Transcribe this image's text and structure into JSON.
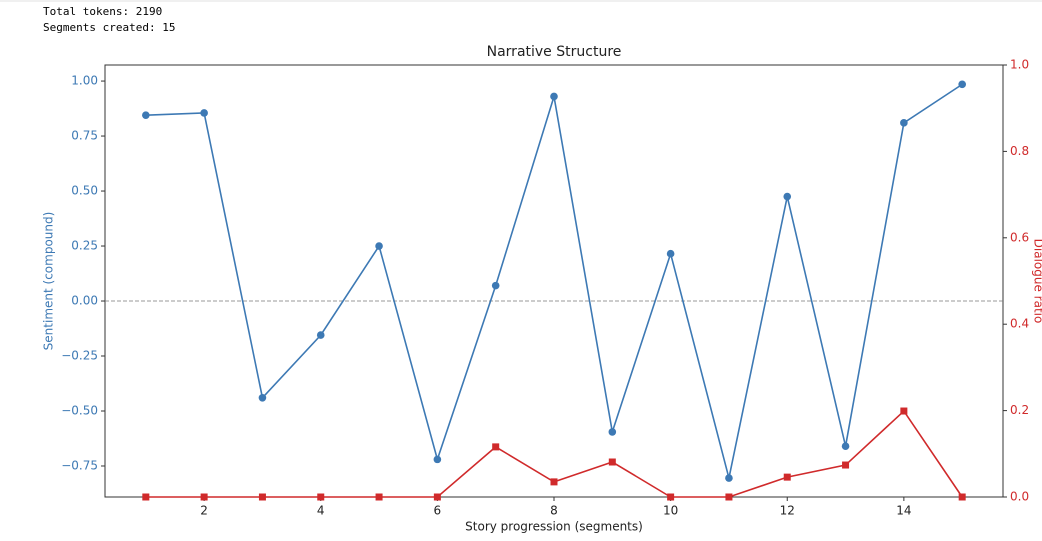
{
  "output_lines": [
    "Total tokens: 2190",
    "Segments created: 15"
  ],
  "chart_data": {
    "type": "line",
    "title": "Narrative Structure",
    "x_label": "Story progression (segments)",
    "y_label": "Sentiment (compound)",
    "y2_label": "Dialogue ratio",
    "x": [
      1,
      2,
      3,
      4,
      5,
      6,
      7,
      8,
      9,
      10,
      11,
      12,
      13,
      14,
      15
    ],
    "series": [
      {
        "name": "Sentiment (compound)",
        "color": "#3d79b4",
        "marker": "circle",
        "values": [
          0.845,
          0.855,
          -0.44,
          -0.155,
          0.25,
          -0.72,
          0.07,
          0.93,
          -0.595,
          0.215,
          -0.805,
          0.475,
          -0.66,
          0.81,
          0.985
        ]
      },
      {
        "name": "Dialogue ratio",
        "color": "#d02a2b",
        "marker": "square",
        "axis": "y2",
        "values": [
          0,
          0,
          0,
          0,
          0,
          0,
          0.116,
          0.035,
          0.081,
          0,
          0,
          0.046,
          0.074,
          0.199,
          0
        ]
      }
    ],
    "xlim": [
      0.3,
      15.7
    ],
    "xticks": [
      2,
      4,
      6,
      8,
      10,
      12,
      14
    ],
    "ylim": [
      -0.891,
      1.073
    ],
    "yticks": [
      {
        "value": -0.75,
        "label": "−0.75"
      },
      {
        "value": -0.5,
        "label": "−0.50"
      },
      {
        "value": -0.25,
        "label": "−0.25"
      },
      {
        "value": 0,
        "label": "0.00"
      },
      {
        "value": 0.25,
        "label": "0.25"
      },
      {
        "value": 0.5,
        "label": "0.50"
      },
      {
        "value": 0.75,
        "label": "0.75"
      },
      {
        "value": 1,
        "label": "1.00"
      }
    ],
    "y2lim": [
      0,
      1
    ],
    "y2ticks": [
      {
        "value": 0,
        "label": "0.0"
      },
      {
        "value": 0.2,
        "label": "0.2"
      },
      {
        "value": 0.4,
        "label": "0.4"
      },
      {
        "value": 0.6,
        "label": "0.6"
      },
      {
        "value": 0.8,
        "label": "0.8"
      },
      {
        "value": 1,
        "label": "1.0"
      }
    ],
    "reference_line": 0
  }
}
